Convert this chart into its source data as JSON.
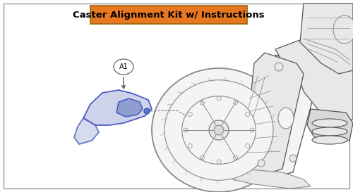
{
  "title": "Caster Alignment Kit w/ Instructions",
  "title_bg_color": "#E87722",
  "title_text_color": "#000000",
  "title_fontsize": 9.5,
  "title_fontweight": "bold",
  "border_color": "#999999",
  "background_color": "#ffffff",
  "label_A1_text": "A1",
  "label_A1_fontsize": 7,
  "fig_width": 5.0,
  "fig_height": 2.73,
  "dpi": 100,
  "line_color": "#888888",
  "line_color_dark": "#555555",
  "fill_light": "#f4f4f4",
  "fill_mid": "#e8e8e8",
  "fill_dark": "#d8d8d8",
  "blue_fill": "#c5cce8",
  "blue_line": "#3344bb"
}
